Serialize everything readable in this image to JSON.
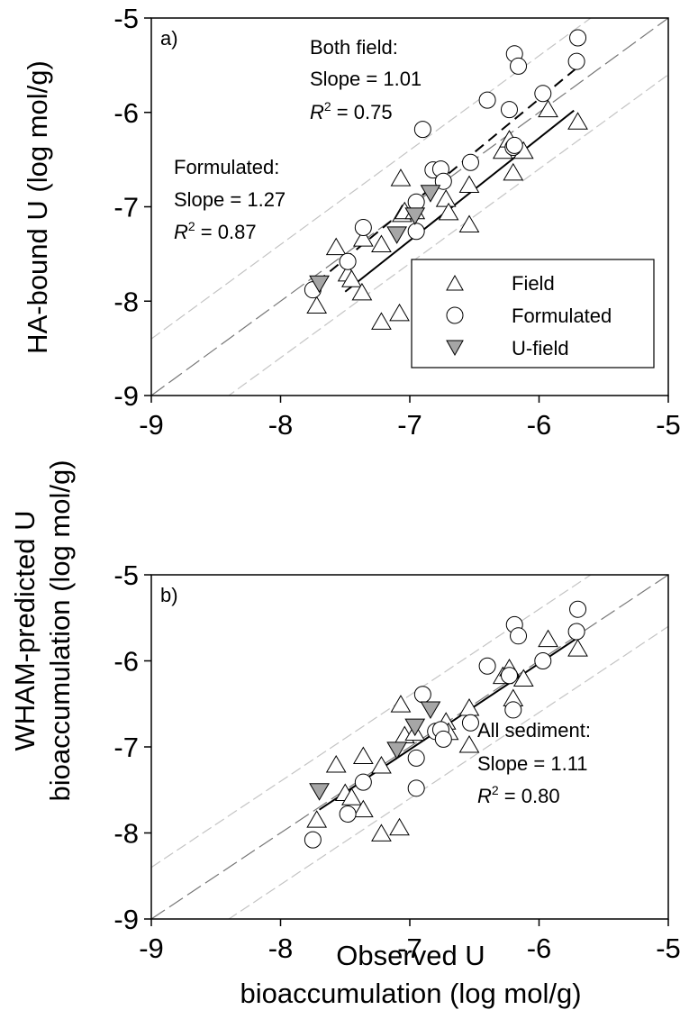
{
  "chart_data": [
    {
      "type": "scatter",
      "panel_label": "a)",
      "ylabel": "HA-bound U (log mol/g)",
      "xlabel": "",
      "xlim": [
        -9,
        -5
      ],
      "ylim": [
        -9,
        -5
      ],
      "xticks": [
        "-9",
        "-8",
        "-7",
        "-6",
        "-5"
      ],
      "yticks": [
        "-9",
        "-8",
        "-7",
        "-6",
        "-5"
      ],
      "legend": {
        "placement": "lower-right",
        "entries": [
          {
            "name": "Field",
            "marker": "triangle-up"
          },
          {
            "name": "Formulated",
            "marker": "circle"
          },
          {
            "name": "U-field",
            "marker": "triangle-down"
          }
        ]
      },
      "annotations": [
        {
          "lines": [
            "Both field:",
            "Slope = 1.01"
          ],
          "r2_prefix": "R",
          "r2_sup": "2",
          "r2_value": " = 0.75"
        },
        {
          "lines": [
            "Formulated:",
            "Slope = 1.27"
          ],
          "r2_prefix": "R",
          "r2_sup": "2",
          "r2_value": " = 0.87"
        }
      ],
      "series": [
        {
          "name": "Field",
          "points": [
            [
              -7.72,
              -8.06
            ],
            [
              -7.57,
              -7.44
            ],
            [
              -7.48,
              -7.72
            ],
            [
              -7.45,
              -7.78
            ],
            [
              -7.37,
              -7.92
            ],
            [
              -7.36,
              -7.35
            ],
            [
              -7.22,
              -8.23
            ],
            [
              -7.22,
              -7.41
            ],
            [
              -7.08,
              -8.14
            ],
            [
              -7.07,
              -6.71
            ],
            [
              -7.06,
              -7.09
            ],
            [
              -7.04,
              -7.06
            ],
            [
              -6.96,
              -7.06
            ],
            [
              -6.72,
              -6.93
            ],
            [
              -6.7,
              -7.07
            ],
            [
              -6.54,
              -7.2
            ],
            [
              -6.54,
              -6.78
            ],
            [
              -6.28,
              -6.42
            ],
            [
              -6.23,
              -6.3
            ],
            [
              -6.2,
              -6.65
            ],
            [
              -6.12,
              -6.42
            ],
            [
              -5.93,
              -5.98
            ],
            [
              -5.7,
              -6.11
            ]
          ]
        },
        {
          "name": "Formulated",
          "points": [
            [
              -7.75,
              -7.88
            ],
            [
              -7.48,
              -7.58
            ],
            [
              -7.36,
              -7.22
            ],
            [
              -6.95,
              -6.95
            ],
            [
              -6.95,
              -7.26
            ],
            [
              -6.9,
              -6.18
            ],
            [
              -6.82,
              -6.61
            ],
            [
              -6.76,
              -6.6
            ],
            [
              -6.74,
              -6.73
            ],
            [
              -6.53,
              -6.53
            ],
            [
              -6.4,
              -5.87
            ],
            [
              -6.23,
              -5.97
            ],
            [
              -6.2,
              -6.37
            ],
            [
              -6.19,
              -6.35
            ],
            [
              -6.19,
              -5.38
            ],
            [
              -6.16,
              -5.51
            ],
            [
              -5.97,
              -5.8
            ],
            [
              -5.71,
              -5.46
            ],
            [
              -5.7,
              -5.21
            ]
          ]
        },
        {
          "name": "U-field",
          "points": [
            [
              -7.7,
              -7.8
            ],
            [
              -7.1,
              -7.28
            ],
            [
              -6.96,
              -7.08
            ],
            [
              -6.84,
              -6.84
            ]
          ]
        }
      ],
      "reference_lines": [
        {
          "name": "1:1",
          "style": "dash-dark",
          "offset": 0
        },
        {
          "name": "+0.6",
          "style": "dash-light",
          "offset": 0.6
        },
        {
          "name": "-0.6",
          "style": "dash-light",
          "offset": -0.6
        }
      ],
      "fit_lines": [
        {
          "name": "Both field fit",
          "style": "dashed",
          "x": [
            -7.72,
            -5.7
          ],
          "y": [
            -7.8,
            -5.52
          ]
        },
        {
          "name": "Formulated fit",
          "style": "solid",
          "x": [
            -7.5,
            -5.73
          ],
          "y": [
            -7.9,
            -5.98
          ]
        }
      ]
    },
    {
      "type": "scatter",
      "panel_label": "b)",
      "ylabel": "WHAM-predicted U bioaccumulation (log mol/g)",
      "ylabel_lines": [
        "WHAM-predicted U",
        "bioaccumulation (log mol/g)"
      ],
      "xlabel": "Observed U bioaccumulation (log mol/g)",
      "xlabel_lines": [
        "Observed U",
        "bioaccumulation (log mol/g)"
      ],
      "xlim": [
        -9,
        -5
      ],
      "ylim": [
        -9,
        -5
      ],
      "xticks": [
        "-9",
        "-8",
        "-7",
        "-6",
        "-5"
      ],
      "yticks": [
        "-9",
        "-8",
        "-7",
        "-6",
        "-5"
      ],
      "annotations": [
        {
          "lines": [
            "All sediment:",
            "Slope = 1.11"
          ],
          "r2_prefix": "R",
          "r2_sup": "2",
          "r2_value": " = 0.80"
        }
      ],
      "series": [
        {
          "name": "Field",
          "points": [
            [
              -7.72,
              -7.86
            ],
            [
              -7.57,
              -7.22
            ],
            [
              -7.5,
              -7.55
            ],
            [
              -7.45,
              -7.6
            ],
            [
              -7.36,
              -7.74
            ],
            [
              -7.36,
              -7.12
            ],
            [
              -7.22,
              -8.02
            ],
            [
              -7.22,
              -7.23
            ],
            [
              -7.08,
              -7.95
            ],
            [
              -7.07,
              -6.52
            ],
            [
              -7.04,
              -6.88
            ],
            [
              -6.96,
              -6.85
            ],
            [
              -6.72,
              -6.72
            ],
            [
              -6.7,
              -6.84
            ],
            [
              -6.54,
              -6.99
            ],
            [
              -6.54,
              -6.56
            ],
            [
              -6.28,
              -6.19
            ],
            [
              -6.23,
              -6.1
            ],
            [
              -6.2,
              -6.45
            ],
            [
              -6.12,
              -6.22
            ],
            [
              -5.93,
              -5.76
            ],
            [
              -5.7,
              -5.87
            ]
          ]
        },
        {
          "name": "Formulated",
          "points": [
            [
              -7.75,
              -8.08
            ],
            [
              -7.48,
              -7.78
            ],
            [
              -7.36,
              -7.41
            ],
            [
              -6.95,
              -7.13
            ],
            [
              -6.95,
              -7.48
            ],
            [
              -6.9,
              -6.39
            ],
            [
              -6.8,
              -6.82
            ],
            [
              -6.76,
              -6.8
            ],
            [
              -6.74,
              -6.91
            ],
            [
              -6.53,
              -6.72
            ],
            [
              -6.4,
              -6.06
            ],
            [
              -6.23,
              -6.17
            ],
            [
              -6.2,
              -6.57
            ],
            [
              -6.19,
              -5.58
            ],
            [
              -6.16,
              -5.71
            ],
            [
              -5.97,
              -6.0
            ],
            [
              -5.71,
              -5.66
            ],
            [
              -5.7,
              -5.4
            ]
          ]
        },
        {
          "name": "U-field",
          "points": [
            [
              -7.7,
              -7.5
            ],
            [
              -7.1,
              -7.02
            ],
            [
              -6.96,
              -6.75
            ],
            [
              -6.84,
              -6.55
            ]
          ]
        }
      ],
      "reference_lines": [
        {
          "name": "1:1",
          "style": "dash-dark",
          "offset": 0
        },
        {
          "name": "+0.6",
          "style": "dash-light",
          "offset": 0.6
        },
        {
          "name": "-0.6",
          "style": "dash-light",
          "offset": -0.6
        }
      ],
      "fit_lines": [
        {
          "name": "All sediment fit",
          "style": "solid",
          "x": [
            -7.7,
            -5.72
          ],
          "y": [
            -7.73,
            -5.75
          ]
        }
      ]
    }
  ]
}
